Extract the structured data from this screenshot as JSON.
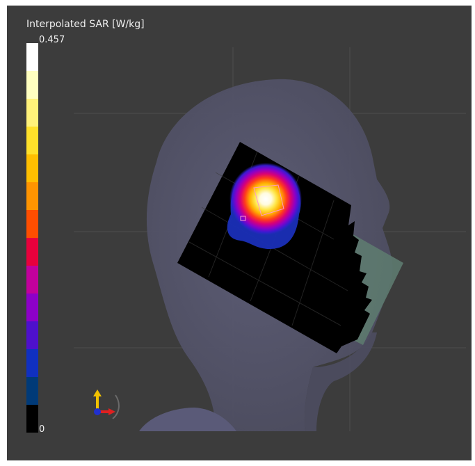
{
  "colorbar": {
    "title": "Interpolated SAR [W/kg]",
    "max_label": "0.457",
    "min_label": "0",
    "colors_top_to_bottom": [
      "#ffffff",
      "#ffffc0",
      "#fff27a",
      "#ffe12a",
      "#ffbf00",
      "#ff9400",
      "#ff4e00",
      "#e8003c",
      "#c2009c",
      "#8d00c8",
      "#4e10cc",
      "#1030c0",
      "#003a78",
      "#000000"
    ]
  },
  "colors": {
    "viewport_background": "#3c3c3c",
    "head_surface": "#56566b",
    "grid": "#5d5d5d",
    "measurement_plane": "#000000",
    "phone_side": "#5d7a6f"
  },
  "icons": {
    "axis_triad": "xyz-axis-triad-icon"
  }
}
